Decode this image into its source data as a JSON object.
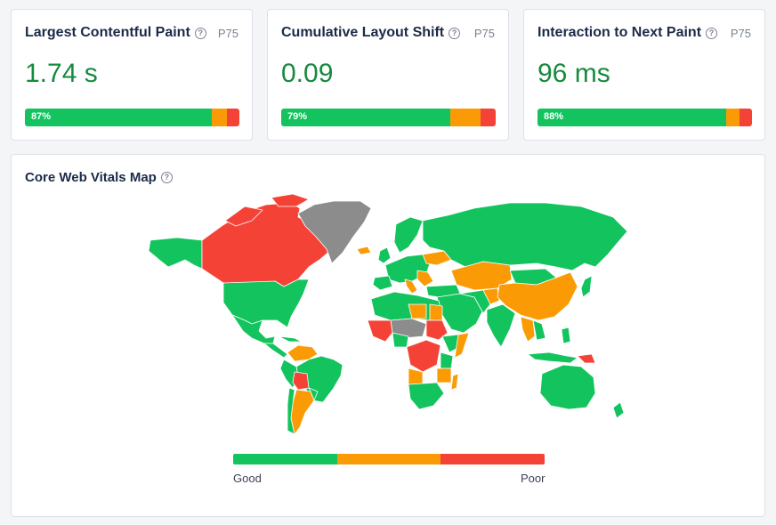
{
  "metrics": [
    {
      "title": "Largest Contentful Paint",
      "percentile": "P75",
      "value": "1.74 s",
      "good_pct": 87,
      "ni_pct": 7,
      "poor_pct": 6,
      "good_label": "87%"
    },
    {
      "title": "Cumulative Layout Shift",
      "percentile": "P75",
      "value": "0.09",
      "good_pct": 79,
      "ni_pct": 14,
      "poor_pct": 7,
      "good_label": "79%"
    },
    {
      "title": "Interaction to Next Paint",
      "percentile": "P75",
      "value": "96 ms",
      "good_pct": 88,
      "ni_pct": 6,
      "poor_pct": 6,
      "good_label": "88%"
    }
  ],
  "map": {
    "title": "Core Web Vitals Map",
    "legend": {
      "good": "Good",
      "poor": "Poor"
    }
  },
  "colors": {
    "good": "#13c45e",
    "needs_improvement": "#fa9b06",
    "poor": "#f44336",
    "no_data": "#8c8c8c",
    "value_text": "#168a3f"
  },
  "icons": {
    "help": "question-circle-icon"
  }
}
